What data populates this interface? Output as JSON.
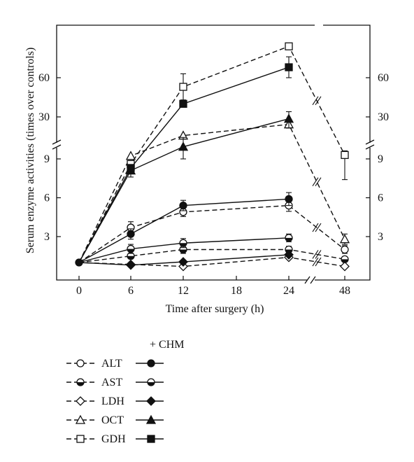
{
  "chart_data": {
    "type": "line",
    "ylabel": "Serum enzyme activities (times over controls)",
    "xlabel": "Time after surgery (h)",
    "x_ticks": [
      "0",
      "6",
      "12",
      "18",
      "24",
      "48"
    ],
    "y_ticks_lower": [
      "3",
      "6",
      "9"
    ],
    "y_ticks_upper": [
      "30",
      "60"
    ],
    "y_scale": "broken axis: 0–9 linear, 9–84 compressed",
    "legend_header": "+ CHM",
    "legend_items": [
      {
        "label": "ALT",
        "control_marker": "open-circle",
        "chm_marker": "filled-circle"
      },
      {
        "label": "AST",
        "control_marker": "half-circle",
        "chm_marker": "half-circle"
      },
      {
        "label": "LDH",
        "control_marker": "open-diamond",
        "chm_marker": "filled-diamond"
      },
      {
        "label": "OCT",
        "control_marker": "open-triangle",
        "chm_marker": "filled-triangle"
      },
      {
        "label": "GDH",
        "control_marker": "open-square",
        "chm_marker": "filled-square"
      }
    ],
    "series": [
      {
        "enzyme": "ALT",
        "group": "control",
        "line": "dashed",
        "marker": "open-circle",
        "x": [
          0,
          6,
          12,
          24,
          48
        ],
        "y": [
          1,
          3.7,
          4.9,
          5.4,
          2.0
        ],
        "err": [
          0,
          0.45,
          0.35,
          0.45,
          0.3
        ]
      },
      {
        "enzyme": "ALT",
        "group": "CHM",
        "line": "solid",
        "marker": "filled-circle",
        "x": [
          0,
          6,
          12,
          24
        ],
        "y": [
          1,
          3.2,
          5.4,
          5.9
        ],
        "err": [
          0,
          0.4,
          0.4,
          0.5
        ]
      },
      {
        "enzyme": "AST",
        "group": "control",
        "line": "dashed",
        "marker": "half-circle",
        "x": [
          0,
          6,
          12,
          24,
          48
        ],
        "y": [
          1,
          1.5,
          2.0,
          2.0,
          1.25
        ],
        "err": [
          0,
          0,
          0.3,
          0.25,
          0
        ]
      },
      {
        "enzyme": "AST",
        "group": "CHM",
        "line": "solid",
        "marker": "half-circle",
        "x": [
          0,
          6,
          12,
          24
        ],
        "y": [
          1,
          2.05,
          2.5,
          2.9
        ],
        "err": [
          0,
          0.35,
          0.35,
          0.3
        ]
      },
      {
        "enzyme": "LDH",
        "group": "control",
        "line": "dashed",
        "marker": "open-diamond",
        "x": [
          0,
          6,
          12,
          24,
          48
        ],
        "y": [
          1,
          0.85,
          0.7,
          1.4,
          0.7
        ],
        "err": [
          0,
          0,
          0,
          0,
          0
        ]
      },
      {
        "enzyme": "LDH",
        "group": "CHM",
        "line": "solid",
        "marker": "filled-diamond",
        "x": [
          0,
          6,
          12,
          24
        ],
        "y": [
          1,
          0.8,
          1.05,
          1.6
        ],
        "err": [
          0,
          0,
          0,
          0
        ]
      },
      {
        "enzyme": "OCT",
        "group": "control",
        "line": "dashed",
        "marker": "open-triangle",
        "x": [
          0,
          6,
          12,
          24,
          48
        ],
        "y": [
          1,
          9.1,
          20,
          26,
          2.8
        ],
        "err": [
          0,
          0,
          0,
          0,
          0.4
        ]
      },
      {
        "enzyme": "OCT",
        "group": "CHM",
        "line": "solid",
        "marker": "filled-triangle",
        "x": [
          0,
          6,
          12,
          24
        ],
        "y": [
          1,
          8.1,
          14,
          29
        ],
        "err": [
          0,
          0.5,
          5,
          5
        ]
      },
      {
        "enzyme": "GDH",
        "group": "control",
        "line": "dashed",
        "marker": "open-square",
        "x": [
          0,
          6,
          12,
          24,
          48
        ],
        "y": [
          1,
          8.6,
          53,
          84,
          9.6
        ],
        "err": [
          0,
          0,
          10,
          0,
          2.2
        ]
      },
      {
        "enzyme": "GDH",
        "group": "CHM",
        "line": "solid",
        "marker": "filled-square",
        "x": [
          0,
          6,
          12,
          24
        ],
        "y": [
          1,
          8.3,
          40,
          68
        ],
        "err": [
          0,
          0,
          0,
          8
        ]
      }
    ]
  }
}
